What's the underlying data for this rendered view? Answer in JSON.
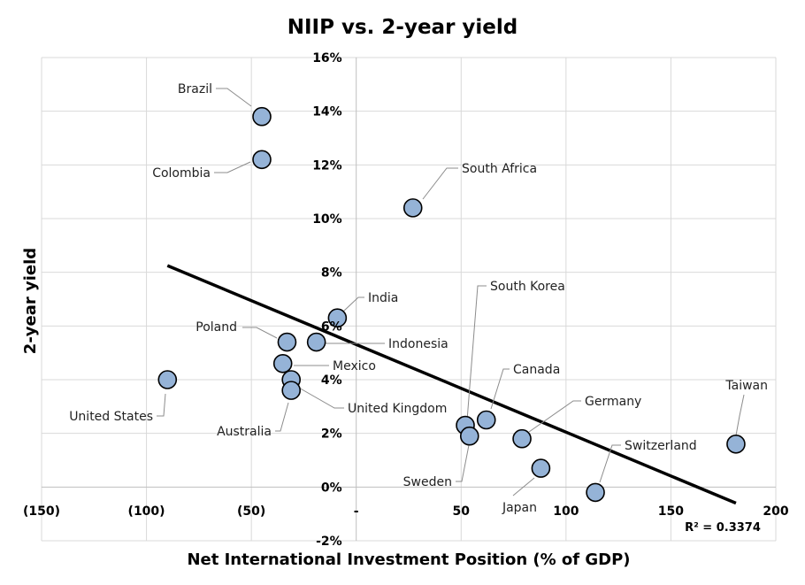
{
  "chart_data": {
    "type": "scatter",
    "title": "NIIP vs. 2-year yield",
    "xlabel": "Net International Investment Position (% of GDP)",
    "ylabel": "2-year yield",
    "xlim": [
      -150,
      200
    ],
    "ylim": [
      -2,
      16
    ],
    "x_ticks": [
      {
        "value": -150,
        "label": "(150)"
      },
      {
        "value": -100,
        "label": "(100)"
      },
      {
        "value": -50,
        "label": "(50)"
      },
      {
        "value": 0,
        "label": "-"
      },
      {
        "value": 50,
        "label": "50"
      },
      {
        "value": 100,
        "label": "100"
      },
      {
        "value": 150,
        "label": "150"
      },
      {
        "value": 200,
        "label": "200"
      }
    ],
    "y_ticks": [
      {
        "value": -2,
        "label": "-2%"
      },
      {
        "value": 0,
        "label": "0%"
      },
      {
        "value": 2,
        "label": "2%"
      },
      {
        "value": 4,
        "label": "4%"
      },
      {
        "value": 6,
        "label": "6%"
      },
      {
        "value": 8,
        "label": "8%"
      },
      {
        "value": 10,
        "label": "10%"
      },
      {
        "value": 12,
        "label": "12%"
      },
      {
        "value": 14,
        "label": "14%"
      },
      {
        "value": 16,
        "label": "16%"
      }
    ],
    "grid": true,
    "points": [
      {
        "name": "Brazil",
        "x": -45,
        "y": 13.8
      },
      {
        "name": "Colombia",
        "x": -45,
        "y": 12.2
      },
      {
        "name": "South Africa",
        "x": 27,
        "y": 10.4
      },
      {
        "name": "India",
        "x": -9,
        "y": 6.3
      },
      {
        "name": "Poland",
        "x": -33,
        "y": 5.4
      },
      {
        "name": "Indonesia",
        "x": -19,
        "y": 5.4
      },
      {
        "name": "Mexico",
        "x": -35,
        "y": 4.6
      },
      {
        "name": "United States",
        "x": -90,
        "y": 4.0
      },
      {
        "name": "United Kingdom",
        "x": -31,
        "y": 4.0
      },
      {
        "name": "Australia",
        "x": -31,
        "y": 3.6
      },
      {
        "name": "South Korea",
        "x": 52,
        "y": 2.3
      },
      {
        "name": "Sweden",
        "x": 54,
        "y": 1.9
      },
      {
        "name": "Canada",
        "x": 62,
        "y": 2.5
      },
      {
        "name": "Germany",
        "x": 79,
        "y": 1.8
      },
      {
        "name": "Japan",
        "x": 88,
        "y": 0.7
      },
      {
        "name": "Switzerland",
        "x": 114,
        "y": -0.2
      },
      {
        "name": "Taiwan",
        "x": 181,
        "y": 1.6
      }
    ],
    "trendline": {
      "x": [
        -90,
        181
      ],
      "y": [
        8.25,
        -0.6
      ]
    },
    "r_squared_label": "R² = 0.3374",
    "colors": {
      "marker_fill": "#95b3d7",
      "marker_stroke": "#000000",
      "trendline": "#000000",
      "grid": "#d9d9d9"
    }
  }
}
